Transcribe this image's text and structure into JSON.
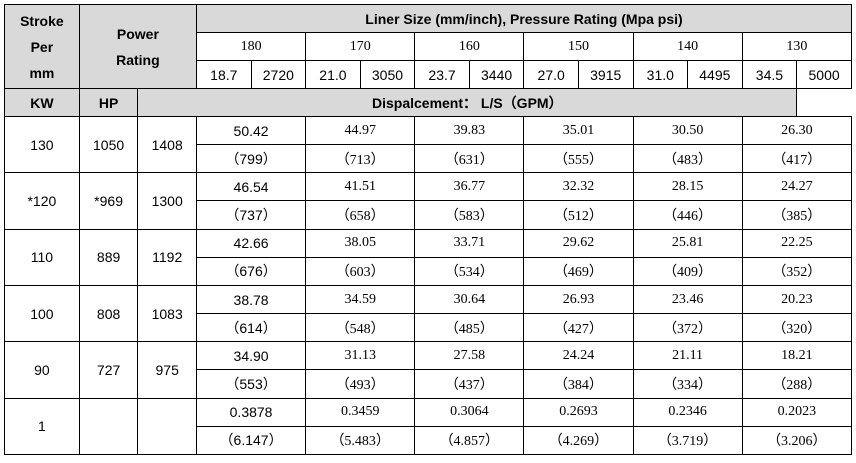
{
  "header": {
    "stroke_lines": [
      "Stroke",
      "Per",
      "mm"
    ],
    "power_lines": [
      "Power",
      "Rating"
    ],
    "liner_title": "Liner Size (mm/inch), Pressure Rating (Mpa psi)",
    "kw": "KW",
    "hp": "HP",
    "displacement": "Dispalcement： L/S（GPM）"
  },
  "liners": [
    {
      "size": "180",
      "mpa": "18.7",
      "psi": "2720"
    },
    {
      "size": "170",
      "mpa": "21.0",
      "psi": "3050"
    },
    {
      "size": "160",
      "mpa": "23.7",
      "psi": "3440"
    },
    {
      "size": "150",
      "mpa": "27.0",
      "psi": "3915"
    },
    {
      "size": "140",
      "mpa": "31.0",
      "psi": "4495"
    },
    {
      "size": "130",
      "mpa": "34.5",
      "psi": "5000"
    }
  ],
  "rows": [
    {
      "stroke": "130",
      "kw": "1050",
      "hp": "1408",
      "ls": [
        "50.42",
        "44.97",
        "39.83",
        "35.01",
        "30.50",
        "26.30"
      ],
      "gpm": [
        "（799）",
        "（713）",
        "（631）",
        "（555）",
        "（483）",
        "（417）"
      ]
    },
    {
      "stroke": "*120",
      "kw": "*969",
      "hp": "1300",
      "ls": [
        "46.54",
        "41.51",
        "36.77",
        "32.32",
        "28.15",
        "24.27"
      ],
      "gpm": [
        "（737）",
        "（658）",
        "（583）",
        "（512）",
        "（446）",
        "（385）"
      ]
    },
    {
      "stroke": "110",
      "kw": "889",
      "hp": "1192",
      "ls": [
        "42.66",
        "38.05",
        "33.71",
        "29.62",
        "25.81",
        "22.25"
      ],
      "gpm": [
        "（676）",
        "（603）",
        "（534）",
        "（469）",
        "（409）",
        "（352）"
      ]
    },
    {
      "stroke": "100",
      "kw": "808",
      "hp": "1083",
      "ls": [
        "38.78",
        "34.59",
        "30.64",
        "26.93",
        "23.46",
        "20.23"
      ],
      "gpm": [
        "（614）",
        "（548）",
        "（485）",
        "（427）",
        "（372）",
        "（320）"
      ]
    },
    {
      "stroke": "90",
      "kw": "727",
      "hp": "975",
      "ls": [
        "34.90",
        "31.13",
        "27.58",
        "24.24",
        "21.11",
        "18.21"
      ],
      "gpm": [
        "（553）",
        "（493）",
        "（437）",
        "（384）",
        "（334）",
        "（288）"
      ]
    },
    {
      "stroke": "1",
      "kw": "",
      "hp": "",
      "ls": [
        "0.3878",
        "0.3459",
        "0.3064",
        "0.2693",
        "0.2346",
        "0.2023"
      ],
      "gpm": [
        "（6.147）",
        "（5.483）",
        "（4.857）",
        "（4.269）",
        "（3.719）",
        "（3.206）"
      ]
    }
  ]
}
